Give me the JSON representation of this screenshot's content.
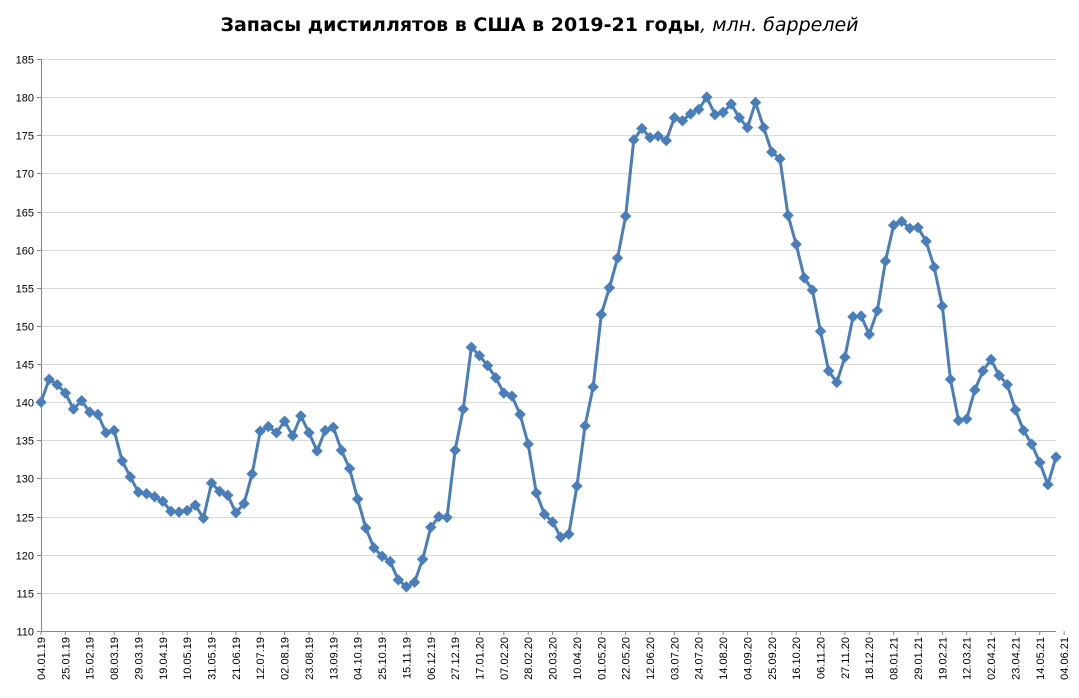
{
  "chart_data": {
    "type": "line",
    "title": "Запасы дистиллятов в США в 2019-21 годы",
    "title_unit": ", млн. баррелей",
    "xlabel": "",
    "ylabel": "",
    "ylim": [
      110,
      185
    ],
    "yticks": [
      110,
      115,
      120,
      125,
      130,
      135,
      140,
      145,
      150,
      155,
      160,
      165,
      170,
      175,
      180,
      185
    ],
    "grid": "horizontal",
    "legend": "none",
    "series_color": "#4a7ebb",
    "marker": "diamond",
    "x_tick_labels": [
      "04.01.19",
      "25.01.19",
      "15.02.19",
      "08.03.19",
      "29.03.19",
      "19.04.19",
      "10.05.19",
      "31.05.19",
      "21.06.19",
      "12.07.19",
      "02.08.19",
      "23.08.19",
      "13.09.19",
      "04.10.19",
      "25.10.19",
      "15.11.19",
      "06.12.19",
      "27.12.19",
      "17.01.20",
      "07.02.20",
      "28.02.20",
      "20.03.20",
      "10.04.20",
      "01.05.20",
      "22.05.20",
      "12.06.20",
      "03.07.20",
      "24.07.20",
      "14.08.20",
      "04.09.20",
      "25.09.20",
      "16.10.20",
      "06.11.20",
      "27.11.20",
      "18.12.20",
      "08.01.21",
      "29.01.21",
      "19.02.21",
      "12.03.21",
      "02.04.21",
      "23.04.21",
      "14.05.21",
      "04.06.21"
    ],
    "series": [
      {
        "values": [
          140.0,
          143.0,
          142.3,
          141.2,
          139.1,
          140.2,
          138.7,
          138.4,
          136.0,
          136.3,
          132.3,
          130.2,
          128.2,
          128.0,
          127.6,
          127.0,
          125.7,
          125.6,
          125.8,
          126.5,
          124.8,
          129.4,
          128.3,
          127.8,
          125.5,
          126.7,
          130.6,
          136.2,
          136.8,
          136.0,
          137.5,
          135.6,
          138.2,
          136.0,
          133.6,
          136.3,
          136.7,
          133.7,
          131.3,
          127.3,
          123.5,
          120.9,
          119.8,
          119.1,
          116.7,
          115.8,
          116.4,
          119.4,
          123.6,
          125.0,
          124.9,
          133.7,
          139.1,
          147.2,
          146.1,
          144.8,
          143.2,
          141.2,
          140.8,
          138.4,
          134.5,
          128.1,
          125.3,
          124.3,
          122.3,
          122.7,
          129.0,
          136.9,
          142.0,
          151.5,
          155.0,
          158.9,
          164.4,
          174.4,
          175.9,
          174.7,
          174.9,
          174.3,
          177.3,
          176.9,
          177.8,
          178.4,
          180.0,
          177.7,
          178.0,
          179.1,
          177.3,
          176.0,
          179.3,
          176.0,
          172.8,
          171.9,
          164.5,
          160.7,
          156.3,
          154.7,
          149.3,
          144.1,
          142.6,
          145.9,
          151.2,
          151.3,
          148.9,
          152.0,
          158.5,
          163.2,
          163.7,
          162.8,
          162.9,
          161.1,
          157.7,
          152.6,
          143.0,
          137.6,
          137.8,
          141.6,
          144.1,
          145.6,
          143.5,
          142.3,
          139.0,
          136.3,
          134.5,
          132.1,
          129.2,
          132.8
        ]
      }
    ]
  }
}
